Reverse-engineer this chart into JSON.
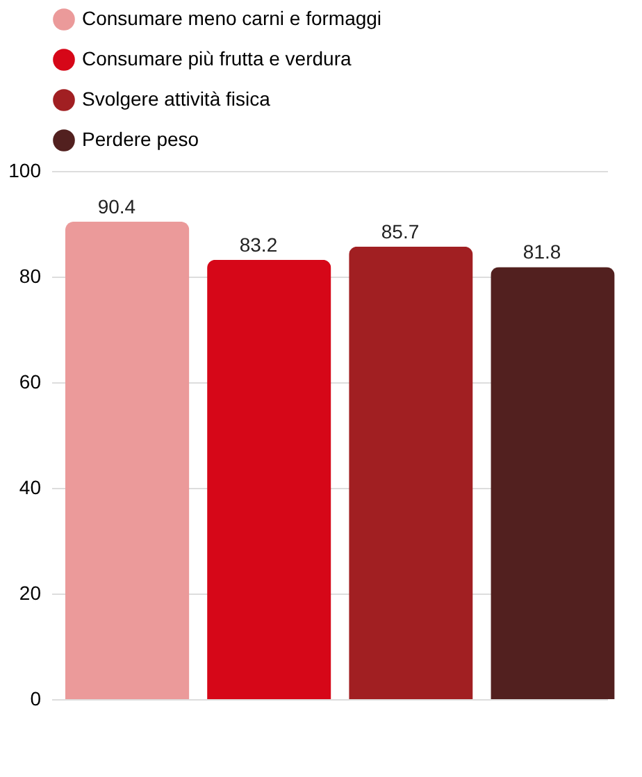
{
  "chart_data": {
    "type": "bar",
    "categories": [
      null
    ],
    "series": [
      {
        "name": "Consumare meno carni e formaggi",
        "color": "#eb9a9a",
        "values": [
          90.4
        ]
      },
      {
        "name": "Consumare più frutta e verdura",
        "color": "#d60718",
        "values": [
          83.2
        ]
      },
      {
        "name": "Svolgere attività fisica",
        "color": "#a11f22",
        "values": [
          85.7
        ]
      },
      {
        "name": "Perdere peso",
        "color": "#52201f",
        "values": [
          81.8
        ]
      }
    ],
    "ylim": [
      0,
      100
    ],
    "yticks": [
      0,
      20,
      40,
      60,
      80,
      100
    ],
    "grid": "y",
    "legend": "top",
    "data_labels": true,
    "tick_labels": "y"
  }
}
